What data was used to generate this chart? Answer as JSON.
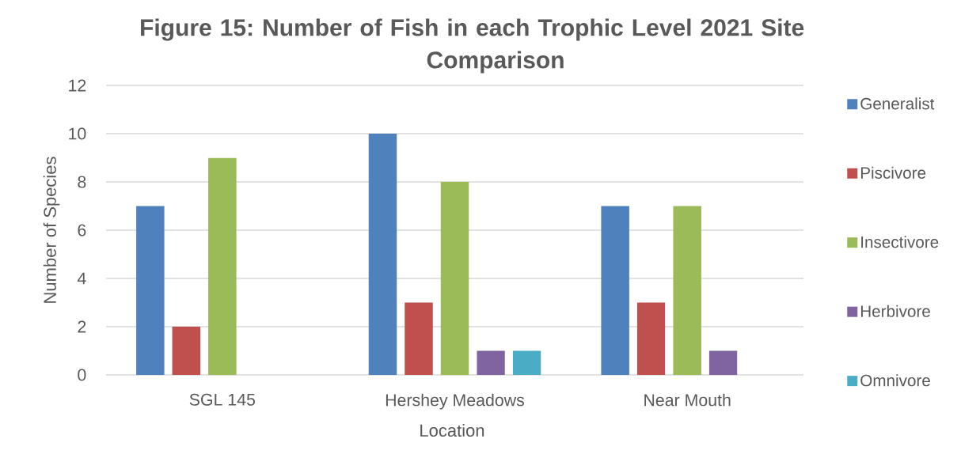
{
  "chart_data": {
    "type": "bar",
    "title": "Figure 15: Number of Fish in each Trophic Level 2021 Site Comparison",
    "xlabel": "Location",
    "ylabel": "Number of Species",
    "categories": [
      "SGL 145",
      "Hershey Meadows",
      "Near Mouth"
    ],
    "series": [
      {
        "name": "Generalist",
        "color": "#4f81bd",
        "values": [
          7,
          10,
          7
        ]
      },
      {
        "name": "Piscivore",
        "color": "#c0504d",
        "values": [
          2,
          3,
          3
        ]
      },
      {
        "name": "Insectivore",
        "color": "#9bbb59",
        "values": [
          9,
          8,
          7
        ]
      },
      {
        "name": "Herbivore",
        "color": "#8064a2",
        "values": [
          null,
          1,
          1
        ]
      },
      {
        "name": "Omnivore",
        "color": "#4bacc6",
        "values": [
          null,
          1,
          null
        ]
      }
    ],
    "ylim": [
      0,
      12
    ],
    "yticks": [
      0,
      2,
      4,
      6,
      8,
      10,
      12
    ],
    "grid": "y",
    "legend": "right"
  }
}
